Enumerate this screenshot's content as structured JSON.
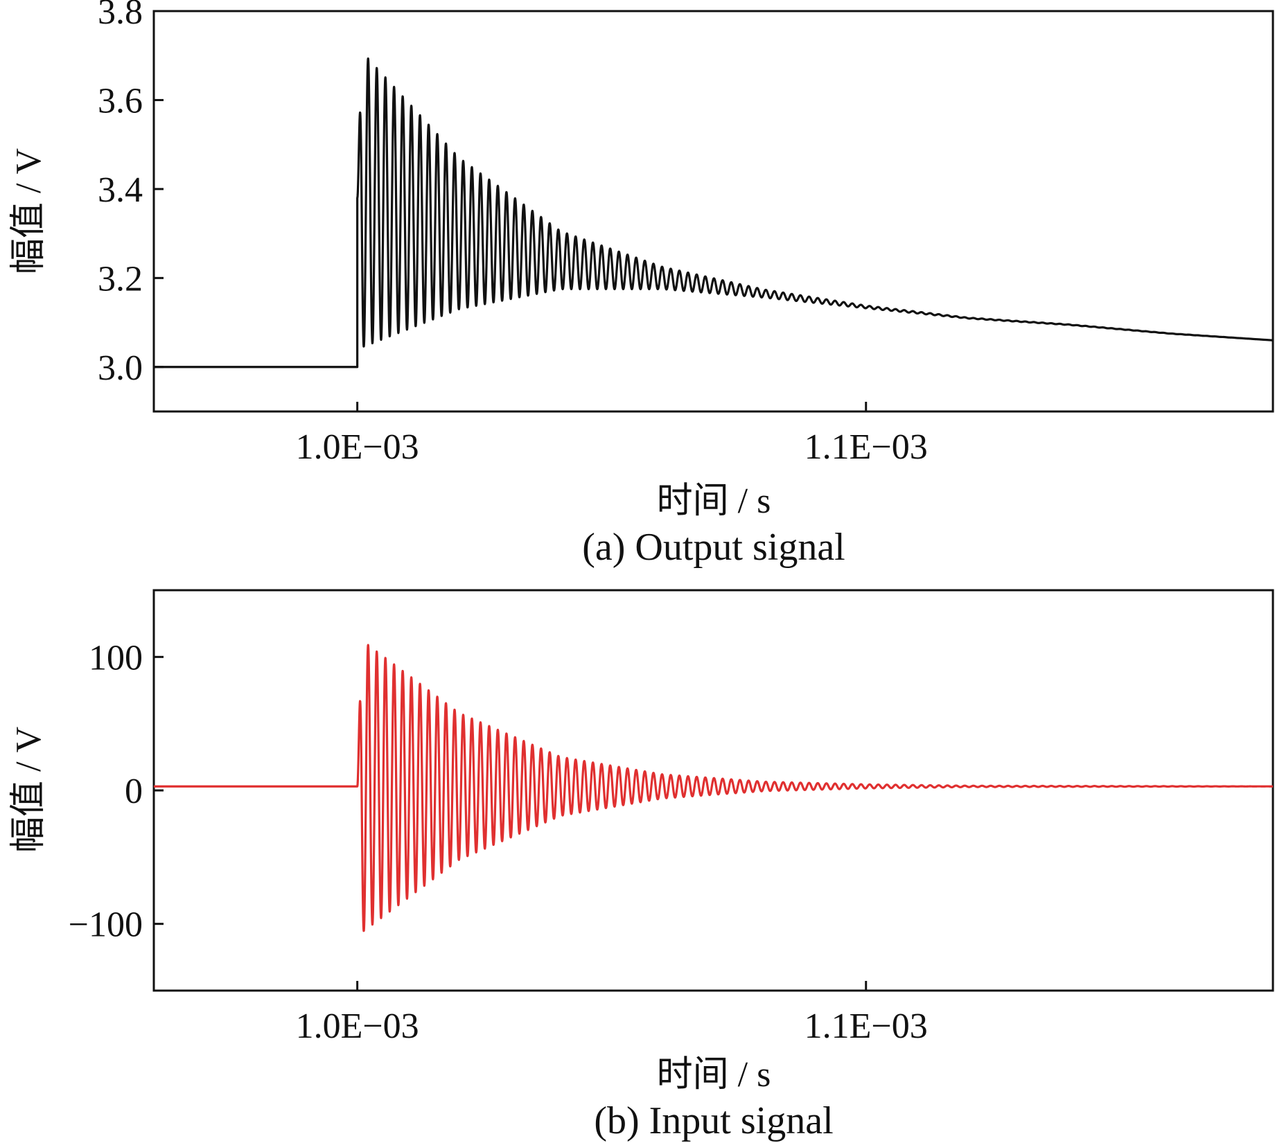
{
  "chart_data": [
    {
      "type": "line",
      "title": "(a) Output signal",
      "xlabel": "时间 / s",
      "ylabel": "幅值 / V",
      "xlim": [
        0.00096,
        0.00118
      ],
      "ylim": [
        2.9,
        3.8
      ],
      "xticks": [
        0.001,
        0.0011
      ],
      "xtick_labels": [
        "1.0E−03",
        "1.1E−03"
      ],
      "yticks": [
        3.0,
        3.2,
        3.4,
        3.6,
        3.8
      ],
      "ytick_labels": [
        "3.0",
        "3.2",
        "3.4",
        "3.6",
        "3.8"
      ],
      "color": "#111111",
      "grid": false,
      "series": [
        {
          "pre_step_value": 3.0,
          "step_time": 0.001,
          "baseline": [
            [
              0.001,
              3.38
            ],
            [
              0.00102,
              3.3
            ],
            [
              0.00104,
              3.24
            ],
            [
              0.00106,
              3.2
            ],
            [
              0.00108,
              3.165
            ],
            [
              0.0011,
              3.135
            ],
            [
              0.00112,
              3.11
            ],
            [
              0.00114,
              3.095
            ],
            [
              0.00116,
              3.075
            ],
            [
              0.00118,
              3.06
            ]
          ],
          "envelope_amplitude": [
            [
              0.001,
              0.34
            ],
            [
              0.00102,
              0.17
            ],
            [
              0.00104,
              0.065
            ],
            [
              0.00106,
              0.025
            ],
            [
              0.00108,
              0.009
            ],
            [
              0.0011,
              0.003
            ],
            [
              0.00112,
              0.001
            ],
            [
              0.00118,
              0.0
            ]
          ],
          "peak": [
            0.0010012,
            3.71
          ],
          "first_trough": [
            0.0010021,
            3.03
          ],
          "oscillation_period": 1.7e-06
        }
      ]
    },
    {
      "type": "line",
      "title": "(b) Input signal",
      "xlabel": "时间 / s",
      "ylabel": "幅值 / V",
      "xlim": [
        0.00096,
        0.00118
      ],
      "ylim": [
        -150,
        150
      ],
      "xticks": [
        0.001,
        0.0011
      ],
      "xtick_labels": [
        "1.0E−03",
        "1.1E−03"
      ],
      "yticks": [
        -100,
        0,
        100
      ],
      "ytick_labels": [
        "−100",
        "0",
        "100"
      ],
      "color": "#e03030",
      "grid": false,
      "series": [
        {
          "pre_step_value": 3.0,
          "step_time": 0.001,
          "baseline": [
            [
              0.00096,
              3.0
            ],
            [
              0.00118,
              3.0
            ]
          ],
          "envelope_amplitude": [
            [
              0.001,
              112
            ],
            [
              0.00102,
              55
            ],
            [
              0.00104,
              22
            ],
            [
              0.00106,
              9
            ],
            [
              0.00108,
              3.5
            ],
            [
              0.0011,
              1.5
            ],
            [
              0.00112,
              0.5
            ],
            [
              0.00118,
              0.0
            ]
          ],
          "peak": [
            0.0010008,
            111
          ],
          "first_trough": [
            0.0010017,
            -100
          ],
          "oscillation_period": 1.7e-06
        }
      ]
    }
  ]
}
